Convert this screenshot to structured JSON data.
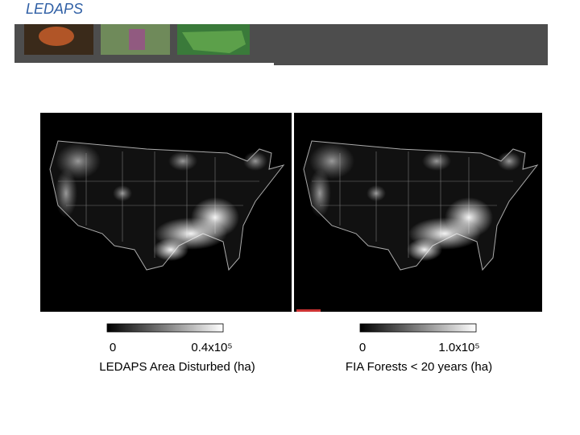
{
  "header": {
    "title": "LEDAPS"
  },
  "panels": [
    {
      "scale_min": "0",
      "scale_max": "0.4x10⁵",
      "caption": "LEDAPS Area Disturbed (ha)"
    },
    {
      "scale_min": "0",
      "scale_max": "1.0x10⁵",
      "caption": "FIA Forests < 20 years (ha)"
    }
  ]
}
